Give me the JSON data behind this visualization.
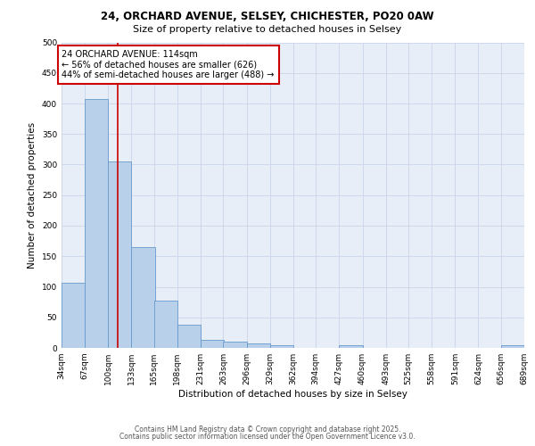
{
  "title_line1": "24, ORCHARD AVENUE, SELSEY, CHICHESTER, PO20 0AW",
  "title_line2": "Size of property relative to detached houses in Selsey",
  "xlabel": "Distribution of detached houses by size in Selsey",
  "ylabel": "Number of detached properties",
  "bins": [
    34,
    67,
    100,
    133,
    165,
    198,
    231,
    263,
    296,
    329,
    362,
    394,
    427,
    460,
    493,
    525,
    558,
    591,
    624,
    656,
    689
  ],
  "bin_labels": [
    "34sqm",
    "67sqm",
    "100sqm",
    "133sqm",
    "165sqm",
    "198sqm",
    "231sqm",
    "263sqm",
    "296sqm",
    "329sqm",
    "362sqm",
    "394sqm",
    "427sqm",
    "460sqm",
    "493sqm",
    "525sqm",
    "558sqm",
    "591sqm",
    "624sqm",
    "656sqm",
    "689sqm"
  ],
  "counts": [
    107,
    407,
    305,
    165,
    78,
    38,
    13,
    10,
    7,
    5,
    0,
    0,
    5,
    0,
    0,
    0,
    0,
    0,
    0,
    5
  ],
  "bar_color": "#b8d0ea",
  "bar_edge_color": "#6699cc",
  "grid_color": "#c8d4e8",
  "bg_color": "#e8eef8",
  "red_line_x": 114,
  "annotation_text": "24 ORCHARD AVENUE: 114sqm\n← 56% of detached houses are smaller (626)\n44% of semi-detached houses are larger (488) →",
  "annotation_box_color": "#ffffff",
  "annotation_border_color": "#cc0000",
  "ylim": [
    0,
    500
  ],
  "yticks": [
    0,
    50,
    100,
    150,
    200,
    250,
    300,
    350,
    400,
    450,
    500
  ],
  "footer_line1": "Contains HM Land Registry data © Crown copyright and database right 2025.",
  "footer_line2": "Contains public sector information licensed under the Open Government Licence v3.0.",
  "title1_fontsize": 8.5,
  "title2_fontsize": 8.0,
  "axis_label_fontsize": 7.5,
  "tick_fontsize": 6.5,
  "annotation_fontsize": 7.0,
  "footer_fontsize": 5.5
}
